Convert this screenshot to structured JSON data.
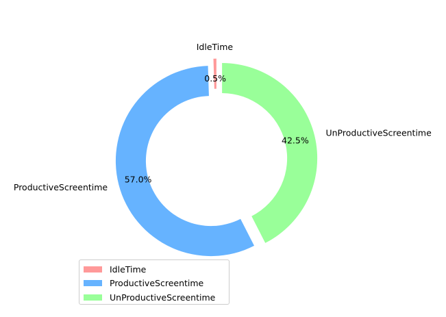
{
  "chart_data": {
    "type": "pie",
    "variant": "donut",
    "categories": [
      "IdleTime",
      "ProductiveScreentime",
      "UnProductiveScreentime"
    ],
    "values": [
      0.5,
      57.0,
      42.5
    ],
    "percent_labels": [
      "0.5%",
      "57.0%",
      "42.5%"
    ],
    "colors": [
      "#ff9999",
      "#66b3ff",
      "#99ff99"
    ],
    "exploded": true,
    "legend_placement": "lower-left",
    "legend": [
      "IdleTime",
      "ProductiveScreentime",
      "UnProductiveScreentime"
    ]
  }
}
